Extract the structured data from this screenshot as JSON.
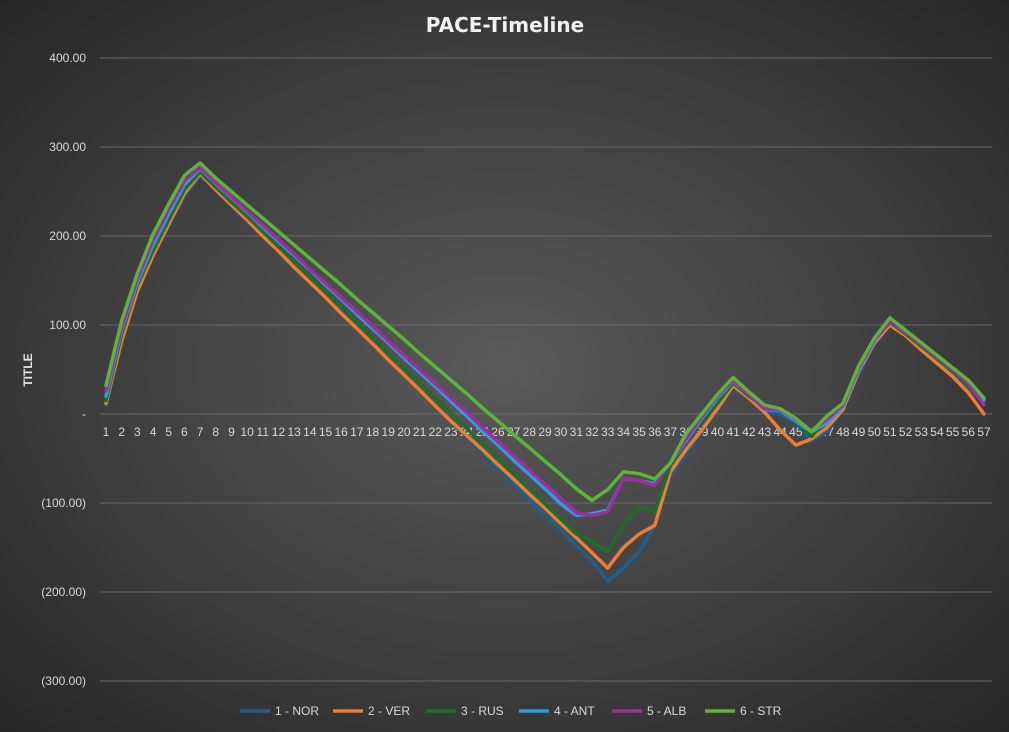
{
  "chart_data": {
    "type": "line",
    "title": "PACE-Timeline",
    "xlabel": "",
    "ylabel": "TITLE",
    "ylim": [
      -300,
      400
    ],
    "yticks": [
      400,
      300,
      200,
      100,
      0,
      -100,
      -200,
      -300
    ],
    "ytick_labels": [
      "400.00",
      "300.00",
      "200.00",
      "100.00",
      "-",
      "(100.00)",
      "(200.00)",
      "(300.00)"
    ],
    "x": [
      1,
      2,
      3,
      4,
      5,
      6,
      7,
      8,
      9,
      10,
      11,
      12,
      13,
      14,
      15,
      16,
      17,
      18,
      19,
      20,
      21,
      22,
      23,
      24,
      25,
      26,
      27,
      28,
      29,
      30,
      31,
      32,
      33,
      34,
      35,
      36,
      37,
      38,
      39,
      40,
      41,
      42,
      43,
      44,
      45,
      46,
      47,
      48,
      49,
      50,
      51,
      52,
      53,
      54,
      55,
      56,
      57
    ],
    "legend_position": "bottom",
    "grid": true,
    "series": [
      {
        "name": "1 - NOR",
        "color": "#1f5f8b",
        "values": [
          10,
          85,
          140,
          178,
          212,
          245,
          268,
          252,
          235,
          218,
          200,
          183,
          165,
          148,
          131,
          113,
          96,
          79,
          61,
          44,
          27,
          9,
          -9,
          -26,
          -43,
          -61,
          -78,
          -96,
          -113,
          -130,
          -148,
          -165,
          -188,
          -173,
          -155,
          -125,
          -70,
          -45,
          -20,
          5,
          30,
          18,
          2,
          0,
          -10,
          -30,
          -20,
          5,
          45,
          78,
          100,
          90,
          75,
          60,
          45,
          30,
          12
        ]
      },
      {
        "name": "2 - VER",
        "color": "#ed7d31",
        "values": [
          12,
          82,
          138,
          178,
          213,
          248,
          270,
          252,
          235,
          218,
          200,
          183,
          165,
          148,
          131,
          113,
          96,
          79,
          61,
          44,
          27,
          9,
          -8,
          -24,
          -40,
          -57,
          -73,
          -90,
          -106,
          -123,
          -139,
          -156,
          -173,
          -150,
          -135,
          -125,
          -65,
          -40,
          -18,
          6,
          32,
          18,
          2,
          -18,
          -35,
          -28,
          -15,
          5,
          48,
          80,
          100,
          88,
          72,
          57,
          42,
          24,
          0
        ]
      },
      {
        "name": "3 - RUS",
        "color": "#1e6e2a",
        "values": [
          15,
          90,
          145,
          183,
          218,
          252,
          272,
          255,
          238,
          222,
          205,
          188,
          171,
          154,
          137,
          120,
          103,
          86,
          69,
          52,
          35,
          18,
          1,
          -16,
          -33,
          -50,
          -67,
          -84,
          -101,
          -118,
          -135,
          -143,
          -155,
          -125,
          -105,
          -110,
          -58,
          -30,
          -8,
          12,
          35,
          20,
          8,
          4,
          -8,
          -25,
          -5,
          10,
          50,
          83,
          103,
          90,
          76,
          62,
          48,
          32,
          14
        ]
      },
      {
        "name": "4 - ANT",
        "color": "#2e9ce0",
        "values": [
          20,
          95,
          148,
          190,
          225,
          258,
          276,
          259,
          243,
          227,
          210,
          194,
          178,
          162,
          145,
          129,
          112,
          96,
          80,
          63,
          47,
          31,
          14,
          -2,
          -19,
          -35,
          -52,
          -68,
          -84,
          -101,
          -114,
          -112,
          -108,
          -72,
          -75,
          -78,
          -55,
          -30,
          -5,
          18,
          37,
          22,
          5,
          4,
          -8,
          -20,
          -10,
          8,
          50,
          82,
          104,
          92,
          78,
          64,
          50,
          36,
          16
        ]
      },
      {
        "name": "5 - ALB",
        "color": "#9b2f9e",
        "values": [
          26,
          98,
          152,
          195,
          230,
          262,
          277,
          260,
          244,
          228,
          212,
          196,
          180,
          163,
          147,
          131,
          115,
          99,
          82,
          66,
          50,
          34,
          18,
          2,
          -15,
          -31,
          -47,
          -63,
          -79,
          -95,
          -111,
          -114,
          -110,
          -72,
          -75,
          -80,
          -55,
          -28,
          -3,
          20,
          38,
          22,
          6,
          5,
          -6,
          -18,
          -6,
          10,
          52,
          83,
          104,
          92,
          78,
          64,
          50,
          34,
          10
        ]
      },
      {
        "name": "6 - STR",
        "color": "#5cb53a",
        "values": [
          32,
          105,
          158,
          202,
          236,
          268,
          282,
          265,
          250,
          235,
          220,
          205,
          190,
          175,
          160,
          145,
          129,
          114,
          99,
          84,
          68,
          53,
          38,
          23,
          7,
          -8,
          -23,
          -38,
          -53,
          -68,
          -84,
          -97,
          -85,
          -65,
          -67,
          -73,
          -55,
          -22,
          0,
          22,
          41,
          25,
          10,
          6,
          -5,
          -20,
          -2,
          12,
          54,
          85,
          108,
          94,
          80,
          66,
          52,
          38,
          18
        ]
      }
    ]
  }
}
